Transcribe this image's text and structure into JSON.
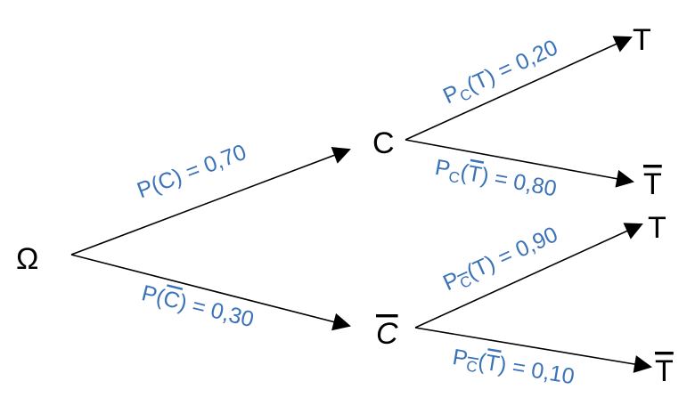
{
  "nodes": {
    "root": "Ω",
    "c": "C",
    "c_bar": "C",
    "c_t": "T",
    "c_t_bar": "T",
    "cbar_t": "T",
    "cbar_t_bar": "T"
  },
  "labels": {
    "p_c": {
      "func": "P",
      "open": "(",
      "event": "C",
      "close": ")",
      "eq": " = ",
      "value": "0,70"
    },
    "p_cbar": {
      "func": "P",
      "open": "(",
      "event": "C",
      "event_bar": true,
      "close": ")",
      "eq": " = ",
      "value": "0,30"
    },
    "pc_t": {
      "func": "P",
      "sub": "C",
      "open": "(",
      "event": "T",
      "close": ")",
      "eq": " = ",
      "value": "0,20"
    },
    "pc_tbar": {
      "func": "P",
      "sub": "C",
      "open": "(",
      "event": "T",
      "event_bar": true,
      "close": ")",
      "eq": " = ",
      "value": "0,80"
    },
    "pcbar_t": {
      "func": "P",
      "sub": "C",
      "sub_bar": true,
      "open": "(",
      "event": "T",
      "close": ")",
      "eq": " = ",
      "value": "0,90"
    },
    "pcbar_tbar": {
      "func": "P",
      "sub": "C",
      "sub_bar": true,
      "open": "(",
      "event": "T",
      "event_bar": true,
      "close": ")",
      "eq": " = ",
      "value": "0,10"
    }
  },
  "colors": {
    "label": "#3b72b8",
    "lines": "#000000"
  }
}
